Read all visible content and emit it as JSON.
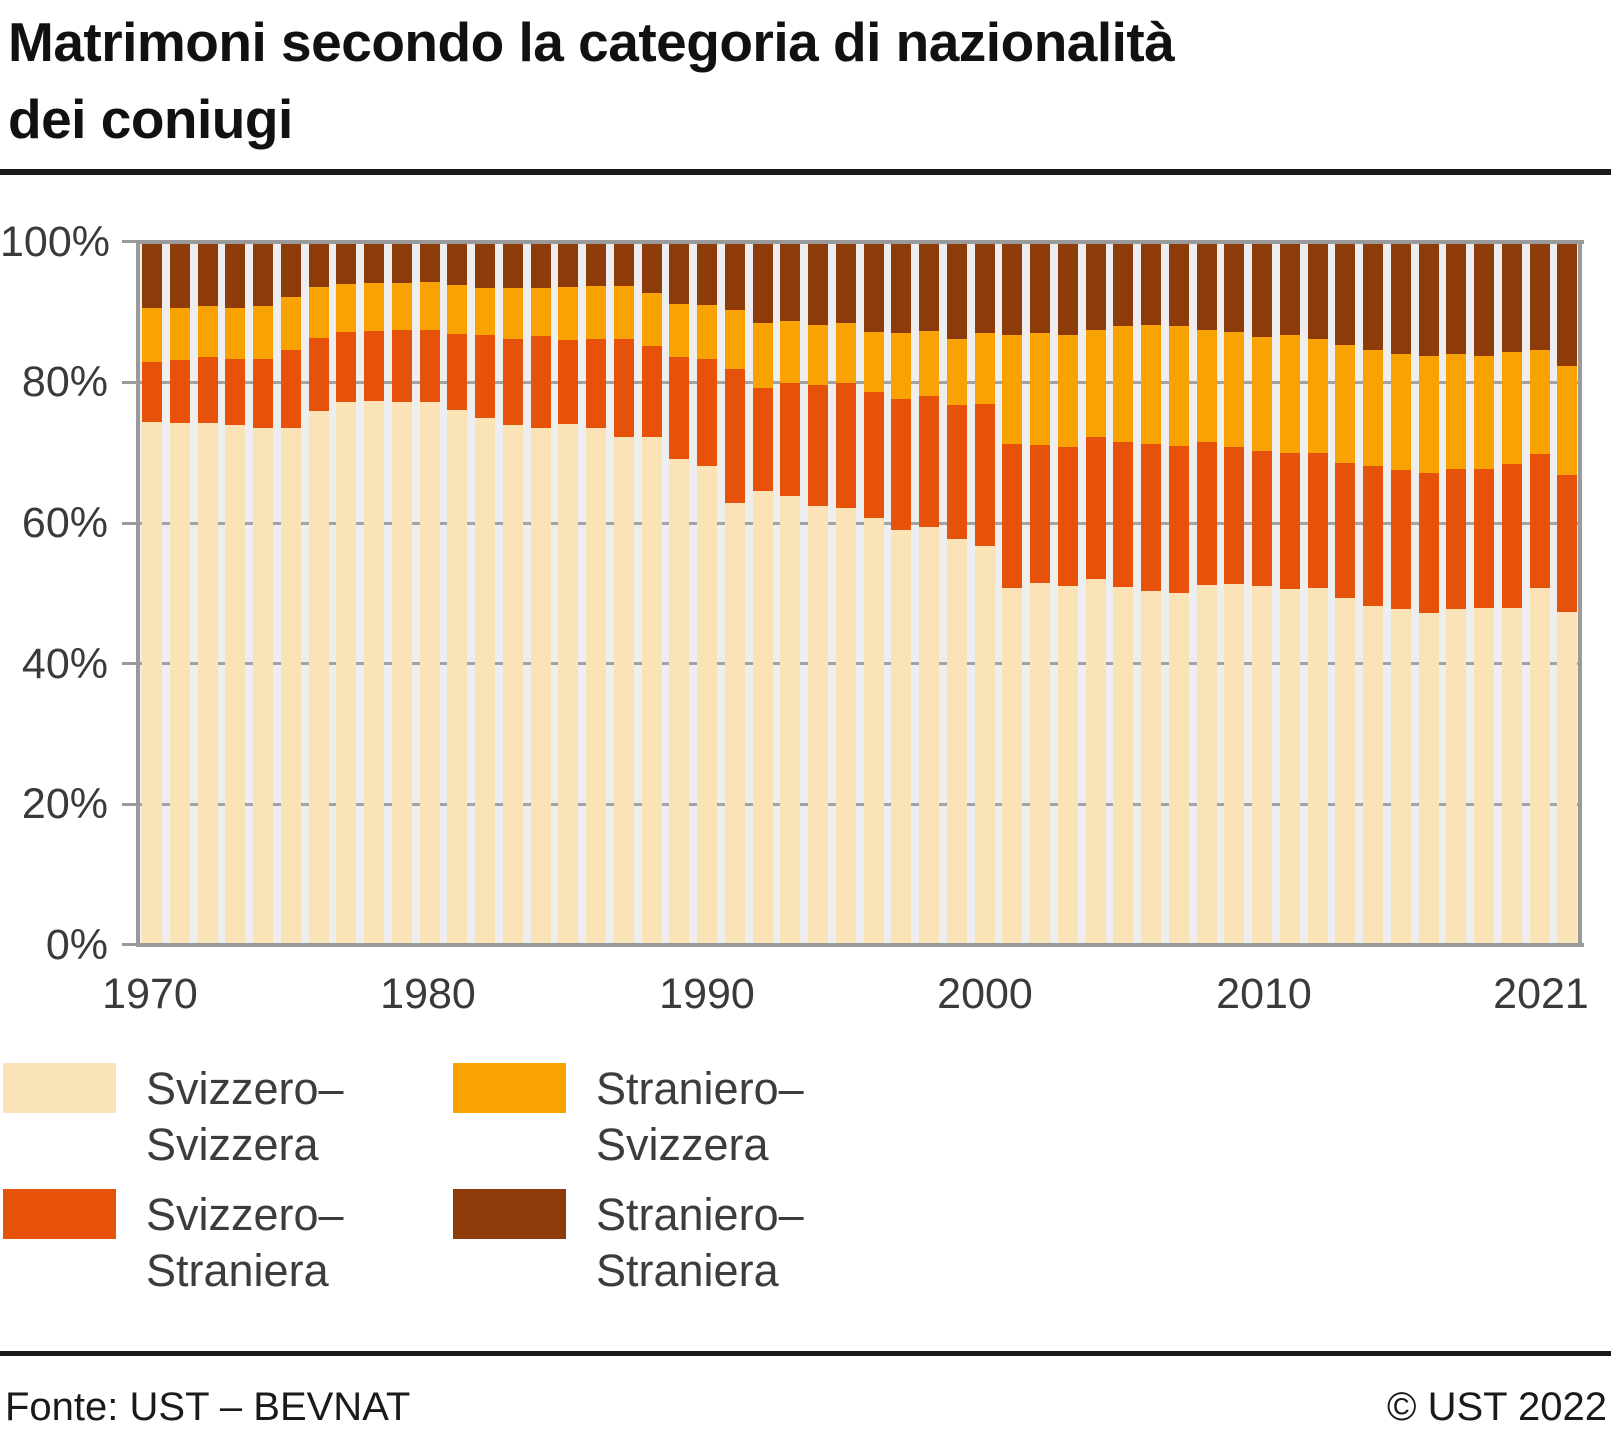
{
  "title": {
    "line1": "Matrimoni secondo la categoria di nazionalità",
    "line2": "dei coniugi"
  },
  "chart_data": {
    "type": "bar",
    "stacked": true,
    "unit": "percent",
    "title": "Matrimoni secondo la categoria di nazionalità dei coniugi",
    "ylim": [
      0,
      100
    ],
    "grid": "horizontal, every 20%",
    "legend_position": "bottom-left, two columns",
    "y_tick_labels": [
      "100%",
      "80%",
      "60%",
      "40%",
      "20%",
      "0%"
    ],
    "x_tick_labels": [
      "1970",
      "1980",
      "1990",
      "2000",
      "2010",
      "2021"
    ],
    "x_tick_indices": [
      0,
      10,
      20,
      30,
      40,
      51
    ],
    "x": [
      1970,
      1971,
      1972,
      1973,
      1974,
      1975,
      1976,
      1977,
      1978,
      1979,
      1980,
      1981,
      1982,
      1983,
      1984,
      1985,
      1986,
      1987,
      1988,
      1989,
      1990,
      1991,
      1992,
      1993,
      1994,
      1995,
      1996,
      1997,
      1998,
      1999,
      2000,
      2001,
      2002,
      2003,
      2004,
      2005,
      2006,
      2007,
      2008,
      2009,
      2010,
      2011,
      2012,
      2013,
      2014,
      2015,
      2016,
      2017,
      2018,
      2019,
      2020,
      2021
    ],
    "series": [
      {
        "name": "Svizzero–Svizzera",
        "color": "#fbe3b8",
        "values": [
          74.4,
          74.3,
          74.3,
          73.9,
          73.5,
          73.5,
          75.9,
          77.2,
          77.4,
          77.3,
          77.3,
          76.1,
          75.0,
          73.9,
          73.5,
          74.1,
          73.5,
          72.2,
          72.2,
          69.2,
          68.1,
          62.9,
          64.6,
          63.9,
          62.4,
          62.2,
          60.8,
          59.1,
          59.5,
          57.8,
          56.8,
          50.8,
          51.5,
          51.1,
          52.0,
          50.9,
          50.4,
          50.1,
          51.2,
          51.4,
          51.1,
          50.7,
          50.8,
          49.3,
          48.2,
          47.8,
          47.2,
          47.8,
          47.9,
          48.0,
          50.8,
          47.3
        ]
      },
      {
        "name": "Svizzero–Straniera",
        "color": "#e7520b",
        "values": [
          8.6,
          8.9,
          9.3,
          9.4,
          9.8,
          11.1,
          10.4,
          10.0,
          9.9,
          10.2,
          10.2,
          10.8,
          11.7,
          12.3,
          13.1,
          12.0,
          12.7,
          14.0,
          13.0,
          14.5,
          15.2,
          19.1,
          14.6,
          16.0,
          17.2,
          17.8,
          17.9,
          18.6,
          18.6,
          19.0,
          20.2,
          20.4,
          19.6,
          19.8,
          20.2,
          20.7,
          20.8,
          20.9,
          20.4,
          19.5,
          19.2,
          19.3,
          19.2,
          19.2,
          19.9,
          19.8,
          20.0,
          19.9,
          19.8,
          20.4,
          19.0,
          19.5
        ]
      },
      {
        "name": "Straniero–Svizzera",
        "color": "#f9a204",
        "values": [
          7.6,
          7.4,
          7.3,
          7.3,
          7.6,
          7.6,
          7.3,
          6.8,
          6.8,
          6.7,
          6.8,
          7.0,
          6.7,
          7.2,
          6.8,
          7.5,
          7.5,
          7.6,
          7.6,
          7.5,
          7.7,
          8.3,
          9.3,
          8.8,
          8.6,
          8.5,
          8.5,
          9.4,
          9.3,
          9.4,
          10.0,
          15.6,
          15.9,
          15.9,
          15.3,
          16.5,
          17.0,
          17.1,
          15.9,
          16.3,
          16.2,
          16.7,
          16.2,
          16.8,
          16.5,
          16.4,
          16.6,
          16.3,
          16.1,
          15.9,
          14.9,
          15.6
        ]
      },
      {
        "name": "Straniero–Straniera",
        "color": "#8d3b08",
        "values": [
          9.4,
          9.4,
          9.1,
          9.4,
          9.1,
          7.8,
          6.4,
          6.0,
          5.9,
          5.8,
          5.7,
          6.1,
          6.6,
          6.6,
          6.6,
          6.4,
          6.3,
          6.2,
          7.2,
          8.8,
          9.0,
          9.7,
          11.5,
          11.3,
          11.8,
          11.5,
          12.8,
          12.9,
          12.6,
          13.8,
          13.0,
          13.2,
          13.0,
          13.2,
          12.5,
          11.9,
          11.8,
          11.9,
          12.5,
          12.8,
          13.5,
          13.3,
          13.8,
          14.7,
          15.4,
          16.0,
          16.2,
          16.0,
          16.2,
          15.7,
          15.3,
          17.6
        ]
      }
    ]
  },
  "legend": {
    "items": [
      {
        "label": "Svizzero–Svizzera",
        "line1": "Svizzero–",
        "line2": "Svizzera",
        "color": "#fbe3b8"
      },
      {
        "label": "Svizzero–Straniera",
        "line1": "Svizzero–",
        "line2": "Straniera",
        "color": "#e7520b"
      },
      {
        "label": "Straniero–Svizzera",
        "line1": "Straniero–",
        "line2": "Svizzera",
        "color": "#f9a204"
      },
      {
        "label": "Straniero–Straniera",
        "line1": "Straniero–",
        "line2": "Straniera",
        "color": "#8d3b08"
      }
    ]
  },
  "footer": {
    "source": "Fonte: UST – BEVNAT",
    "copyright": "© UST 2022"
  }
}
